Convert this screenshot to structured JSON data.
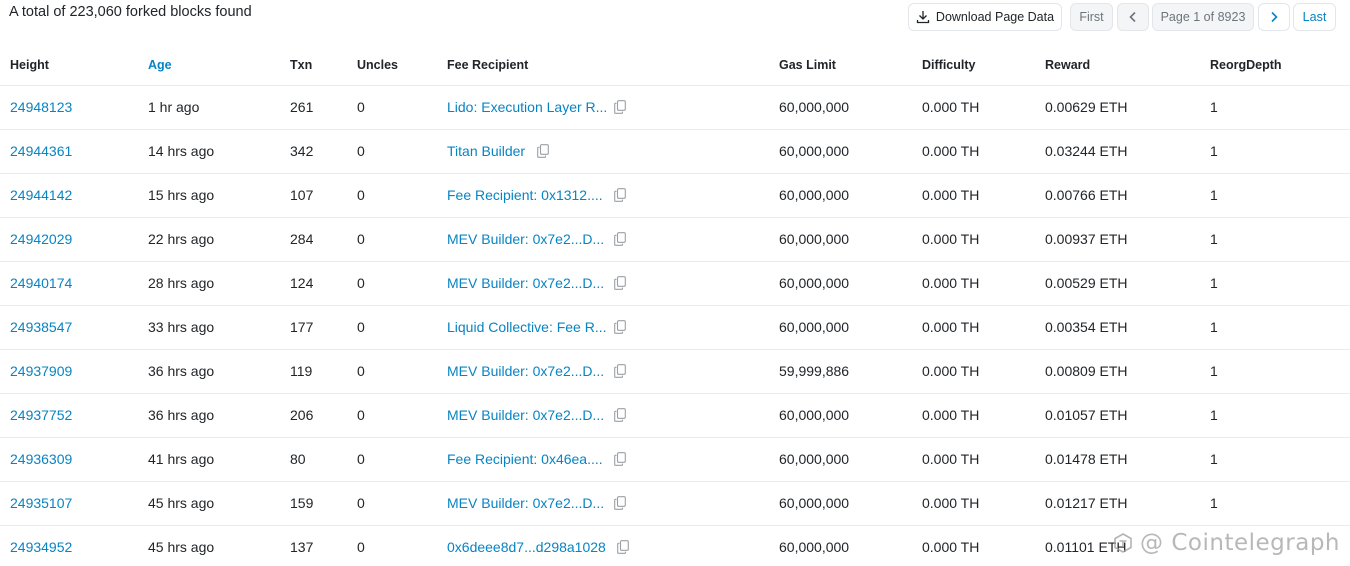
{
  "summary": "A total of 223,060 forked blocks found",
  "pagination": {
    "download_label": "Download Page Data",
    "first_label": "First",
    "page_label": "Page 1 of 8923",
    "last_label": "Last"
  },
  "columns": {
    "height": "Height",
    "age": "Age",
    "txn": "Txn",
    "uncles": "Uncles",
    "fee_recipient": "Fee Recipient",
    "gas_limit": "Gas Limit",
    "difficulty": "Difficulty",
    "reward": "Reward",
    "reorg_depth": "ReorgDepth"
  },
  "rows": [
    {
      "height": "24948123",
      "age": "1 hr ago",
      "txn": "261",
      "uncles": "0",
      "fee_recipient": "Lido: Execution Layer R...",
      "gas_limit": "60,000,000",
      "difficulty": "0.000 TH",
      "reward": "0.00629 ETH",
      "reorg_depth": "1"
    },
    {
      "height": "24944361",
      "age": "14 hrs ago",
      "txn": "342",
      "uncles": "0",
      "fee_recipient": "Titan Builder",
      "gas_limit": "60,000,000",
      "difficulty": "0.000 TH",
      "reward": "0.03244 ETH",
      "reorg_depth": "1"
    },
    {
      "height": "24944142",
      "age": "15 hrs ago",
      "txn": "107",
      "uncles": "0",
      "fee_recipient": "Fee Recipient: 0x1312....",
      "gas_limit": "60,000,000",
      "difficulty": "0.000 TH",
      "reward": "0.00766 ETH",
      "reorg_depth": "1"
    },
    {
      "height": "24942029",
      "age": "22 hrs ago",
      "txn": "284",
      "uncles": "0",
      "fee_recipient": "MEV Builder: 0x7e2...D...",
      "gas_limit": "60,000,000",
      "difficulty": "0.000 TH",
      "reward": "0.00937 ETH",
      "reorg_depth": "1"
    },
    {
      "height": "24940174",
      "age": "28 hrs ago",
      "txn": "124",
      "uncles": "0",
      "fee_recipient": "MEV Builder: 0x7e2...D...",
      "gas_limit": "60,000,000",
      "difficulty": "0.000 TH",
      "reward": "0.00529 ETH",
      "reorg_depth": "1"
    },
    {
      "height": "24938547",
      "age": "33 hrs ago",
      "txn": "177",
      "uncles": "0",
      "fee_recipient": "Liquid Collective: Fee R...",
      "gas_limit": "60,000,000",
      "difficulty": "0.000 TH",
      "reward": "0.00354 ETH",
      "reorg_depth": "1"
    },
    {
      "height": "24937909",
      "age": "36 hrs ago",
      "txn": "119",
      "uncles": "0",
      "fee_recipient": "MEV Builder: 0x7e2...D...",
      "gas_limit": "59,999,886",
      "difficulty": "0.000 TH",
      "reward": "0.00809 ETH",
      "reorg_depth": "1"
    },
    {
      "height": "24937752",
      "age": "36 hrs ago",
      "txn": "206",
      "uncles": "0",
      "fee_recipient": "MEV Builder: 0x7e2...D...",
      "gas_limit": "60,000,000",
      "difficulty": "0.000 TH",
      "reward": "0.01057 ETH",
      "reorg_depth": "1"
    },
    {
      "height": "24936309",
      "age": "41 hrs ago",
      "txn": "80",
      "uncles": "0",
      "fee_recipient": "Fee Recipient: 0x46ea....",
      "gas_limit": "60,000,000",
      "difficulty": "0.000 TH",
      "reward": "0.01478 ETH",
      "reorg_depth": "1"
    },
    {
      "height": "24935107",
      "age": "45 hrs ago",
      "txn": "159",
      "uncles": "0",
      "fee_recipient": "MEV Builder: 0x7e2...D...",
      "gas_limit": "60,000,000",
      "difficulty": "0.000 TH",
      "reward": "0.01217 ETH",
      "reorg_depth": "1"
    },
    {
      "height": "24934952",
      "age": "45 hrs ago",
      "txn": "137",
      "uncles": "0",
      "fee_recipient": "0x6deee8d7...d298a1028",
      "gas_limit": "60,000,000",
      "difficulty": "0.000 TH",
      "reward": "0.01101 ETH",
      "reorg_depth": ""
    }
  ],
  "watermark": "@ Cointelegraph",
  "icons": {
    "download": "download-icon",
    "prev": "chevron-left-icon",
    "next": "chevron-right-icon",
    "copy": "copy-icon",
    "watermark_logo": "cointelegraph-logo-icon"
  },
  "colors": {
    "link": "#0784c3",
    "text": "#212529",
    "border": "#e9ecef"
  }
}
